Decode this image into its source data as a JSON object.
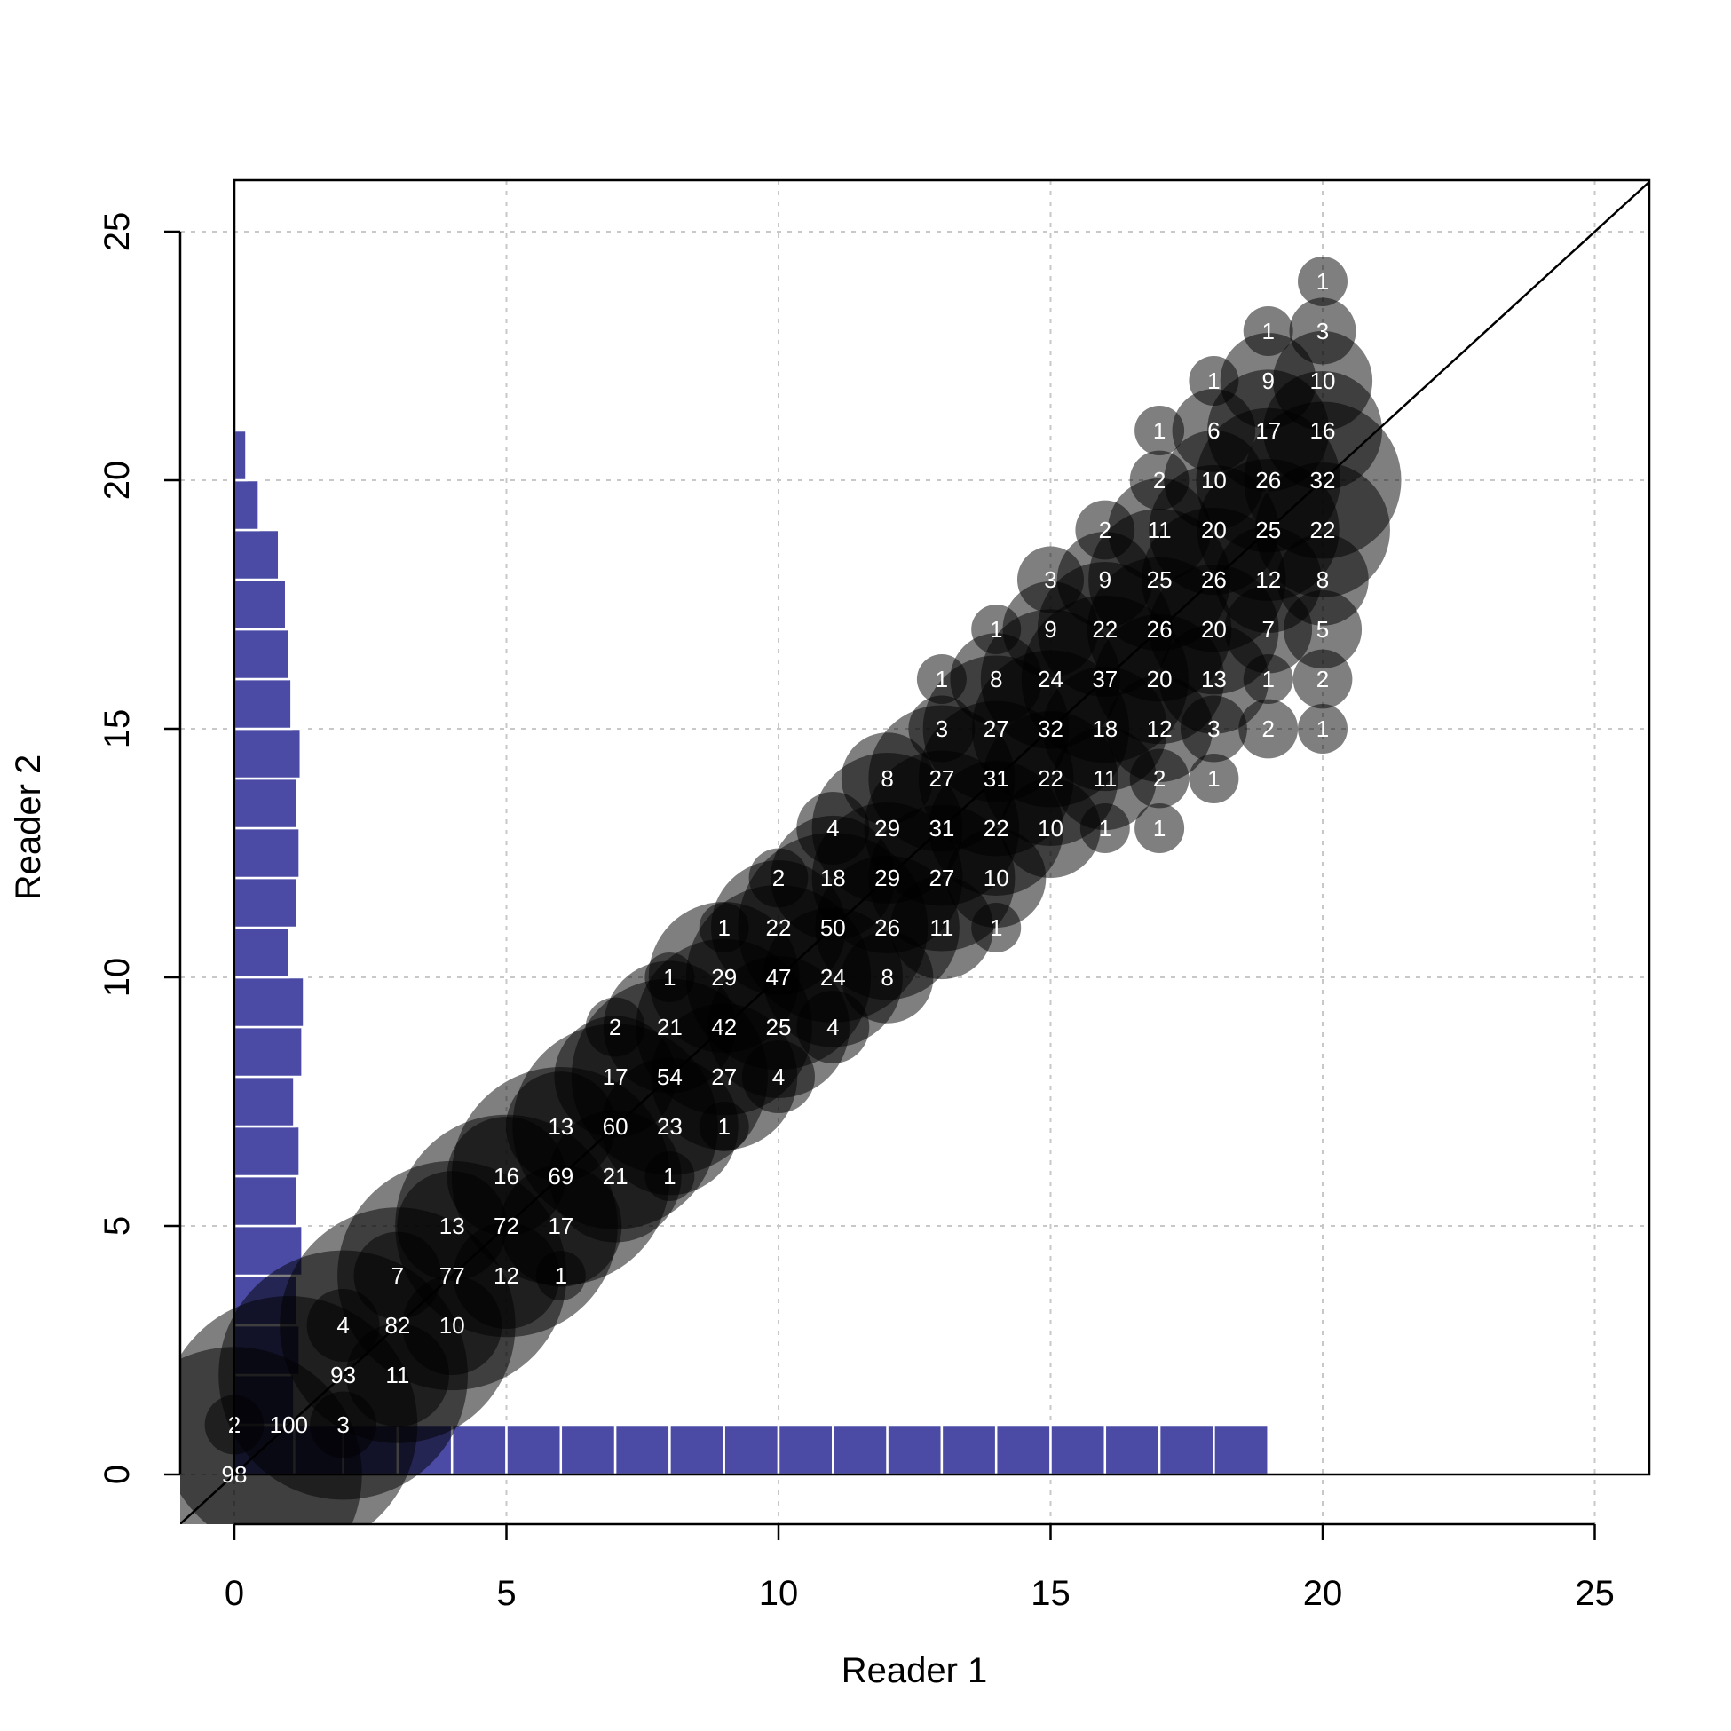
{
  "chart_data": {
    "type": "scatter",
    "subtype": "bubble",
    "title": "",
    "xlabel": "Reader 1",
    "ylabel": "Reader 2",
    "xlim": [
      -1,
      26
    ],
    "ylim": [
      -1,
      26
    ],
    "xticks": [
      0,
      5,
      10,
      15,
      20,
      25
    ],
    "yticks": [
      0,
      5,
      10,
      15,
      20,
      25
    ],
    "grid": true,
    "identity_line": true,
    "bubble_color": "#000000",
    "bubble_opacity": 0.5,
    "bar_color": "#4b4ba6",
    "points": [
      {
        "x": 0,
        "y": 0,
        "n": 98
      },
      {
        "x": 0,
        "y": 1,
        "n": 2
      },
      {
        "x": 1,
        "y": 1,
        "n": 100
      },
      {
        "x": 2,
        "y": 1,
        "n": 3
      },
      {
        "x": 2,
        "y": 2,
        "n": 93
      },
      {
        "x": 3,
        "y": 2,
        "n": 11
      },
      {
        "x": 2,
        "y": 3,
        "n": 4
      },
      {
        "x": 3,
        "y": 3,
        "n": 82
      },
      {
        "x": 4,
        "y": 3,
        "n": 10
      },
      {
        "x": 3,
        "y": 4,
        "n": 7
      },
      {
        "x": 4,
        "y": 4,
        "n": 77
      },
      {
        "x": 5,
        "y": 4,
        "n": 12
      },
      {
        "x": 6,
        "y": 4,
        "n": 1
      },
      {
        "x": 4,
        "y": 5,
        "n": 13
      },
      {
        "x": 5,
        "y": 5,
        "n": 72
      },
      {
        "x": 6,
        "y": 5,
        "n": 17
      },
      {
        "x": 5,
        "y": 6,
        "n": 16
      },
      {
        "x": 6,
        "y": 6,
        "n": 69
      },
      {
        "x": 7,
        "y": 6,
        "n": 21
      },
      {
        "x": 8,
        "y": 6,
        "n": 1
      },
      {
        "x": 6,
        "y": 7,
        "n": 13
      },
      {
        "x": 7,
        "y": 7,
        "n": 60
      },
      {
        "x": 8,
        "y": 7,
        "n": 23
      },
      {
        "x": 9,
        "y": 7,
        "n": 1
      },
      {
        "x": 7,
        "y": 8,
        "n": 17
      },
      {
        "x": 8,
        "y": 8,
        "n": 54
      },
      {
        "x": 9,
        "y": 8,
        "n": 27
      },
      {
        "x": 10,
        "y": 8,
        "n": 4
      },
      {
        "x": 7,
        "y": 9,
        "n": 2
      },
      {
        "x": 8,
        "y": 9,
        "n": 21
      },
      {
        "x": 9,
        "y": 9,
        "n": 42
      },
      {
        "x": 10,
        "y": 9,
        "n": 25
      },
      {
        "x": 11,
        "y": 9,
        "n": 4
      },
      {
        "x": 8,
        "y": 10,
        "n": 1
      },
      {
        "x": 9,
        "y": 10,
        "n": 29
      },
      {
        "x": 10,
        "y": 10,
        "n": 47
      },
      {
        "x": 11,
        "y": 10,
        "n": 24
      },
      {
        "x": 12,
        "y": 10,
        "n": 8
      },
      {
        "x": 9,
        "y": 11,
        "n": 1
      },
      {
        "x": 10,
        "y": 11,
        "n": 22
      },
      {
        "x": 11,
        "y": 11,
        "n": 50
      },
      {
        "x": 12,
        "y": 11,
        "n": 26
      },
      {
        "x": 13,
        "y": 11,
        "n": 11
      },
      {
        "x": 14,
        "y": 11,
        "n": 1
      },
      {
        "x": 10,
        "y": 12,
        "n": 2
      },
      {
        "x": 11,
        "y": 12,
        "n": 18
      },
      {
        "x": 12,
        "y": 12,
        "n": 29
      },
      {
        "x": 13,
        "y": 12,
        "n": 27
      },
      {
        "x": 14,
        "y": 12,
        "n": 10
      },
      {
        "x": 11,
        "y": 13,
        "n": 4
      },
      {
        "x": 12,
        "y": 13,
        "n": 29
      },
      {
        "x": 13,
        "y": 13,
        "n": 31
      },
      {
        "x": 14,
        "y": 13,
        "n": 22
      },
      {
        "x": 15,
        "y": 13,
        "n": 10
      },
      {
        "x": 16,
        "y": 13,
        "n": 1
      },
      {
        "x": 17,
        "y": 13,
        "n": 1
      },
      {
        "x": 12,
        "y": 14,
        "n": 8
      },
      {
        "x": 13,
        "y": 14,
        "n": 27
      },
      {
        "x": 14,
        "y": 14,
        "n": 31
      },
      {
        "x": 15,
        "y": 14,
        "n": 22
      },
      {
        "x": 16,
        "y": 14,
        "n": 11
      },
      {
        "x": 17,
        "y": 14,
        "n": 2
      },
      {
        "x": 18,
        "y": 14,
        "n": 1
      },
      {
        "x": 13,
        "y": 15,
        "n": 3
      },
      {
        "x": 14,
        "y": 15,
        "n": 27
      },
      {
        "x": 15,
        "y": 15,
        "n": 32
      },
      {
        "x": 16,
        "y": 15,
        "n": 18
      },
      {
        "x": 17,
        "y": 15,
        "n": 12
      },
      {
        "x": 18,
        "y": 15,
        "n": 3
      },
      {
        "x": 19,
        "y": 15,
        "n": 2
      },
      {
        "x": 20,
        "y": 15,
        "n": 1
      },
      {
        "x": 13,
        "y": 16,
        "n": 1
      },
      {
        "x": 14,
        "y": 16,
        "n": 8
      },
      {
        "x": 15,
        "y": 16,
        "n": 24
      },
      {
        "x": 16,
        "y": 16,
        "n": 37
      },
      {
        "x": 17,
        "y": 16,
        "n": 20
      },
      {
        "x": 18,
        "y": 16,
        "n": 13
      },
      {
        "x": 19,
        "y": 16,
        "n": 1
      },
      {
        "x": 20,
        "y": 16,
        "n": 2
      },
      {
        "x": 14,
        "y": 17,
        "n": 1
      },
      {
        "x": 15,
        "y": 17,
        "n": 9
      },
      {
        "x": 16,
        "y": 17,
        "n": 22
      },
      {
        "x": 17,
        "y": 17,
        "n": 26
      },
      {
        "x": 18,
        "y": 17,
        "n": 20
      },
      {
        "x": 19,
        "y": 17,
        "n": 7
      },
      {
        "x": 20,
        "y": 17,
        "n": 5
      },
      {
        "x": 15,
        "y": 18,
        "n": 3
      },
      {
        "x": 16,
        "y": 18,
        "n": 9
      },
      {
        "x": 17,
        "y": 18,
        "n": 25
      },
      {
        "x": 18,
        "y": 18,
        "n": 26
      },
      {
        "x": 19,
        "y": 18,
        "n": 12
      },
      {
        "x": 20,
        "y": 18,
        "n": 8
      },
      {
        "x": 16,
        "y": 19,
        "n": 2
      },
      {
        "x": 17,
        "y": 19,
        "n": 11
      },
      {
        "x": 18,
        "y": 19,
        "n": 20
      },
      {
        "x": 19,
        "y": 19,
        "n": 25
      },
      {
        "x": 20,
        "y": 19,
        "n": 22
      },
      {
        "x": 17,
        "y": 20,
        "n": 2
      },
      {
        "x": 18,
        "y": 20,
        "n": 10
      },
      {
        "x": 19,
        "y": 20,
        "n": 26
      },
      {
        "x": 20,
        "y": 20,
        "n": 32
      },
      {
        "x": 17,
        "y": 21,
        "n": 1
      },
      {
        "x": 18,
        "y": 21,
        "n": 6
      },
      {
        "x": 19,
        "y": 21,
        "n": 17
      },
      {
        "x": 20,
        "y": 21,
        "n": 16
      },
      {
        "x": 18,
        "y": 22,
        "n": 1
      },
      {
        "x": 19,
        "y": 22,
        "n": 9
      },
      {
        "x": 20,
        "y": 22,
        "n": 10
      },
      {
        "x": 19,
        "y": 23,
        "n": 1
      },
      {
        "x": 20,
        "y": 23,
        "n": 3
      },
      {
        "x": 20,
        "y": 24,
        "n": 1
      }
    ],
    "bottom_histogram": {
      "description": "marginal distribution of Reader 1 (bars of unit width from x to x+1)",
      "bins": [
        0,
        1,
        2,
        3,
        4,
        5,
        6,
        7,
        8,
        9,
        10,
        11,
        12,
        13,
        14,
        15,
        16,
        17,
        18
      ],
      "heights": [
        1,
        1,
        1,
        1,
        1,
        1,
        1,
        1,
        1,
        1,
        1,
        1,
        1,
        1,
        1,
        1,
        1,
        1,
        1
      ]
    },
    "left_histogram": {
      "description": "marginal distribution of Reader 2 (bars of unit height from y to y+1)",
      "bins": [
        0,
        1,
        2,
        3,
        4,
        5,
        6,
        7,
        8,
        9,
        10,
        11,
        12,
        13,
        14,
        15,
        16,
        17,
        18,
        19,
        20
      ],
      "heights": [
        1.1,
        1.1,
        1.2,
        1.15,
        1.25,
        1.15,
        1.2,
        1.1,
        1.25,
        1.28,
        1.0,
        1.15,
        1.2,
        1.15,
        1.22,
        1.05,
        1.0,
        0.95,
        0.82,
        0.45,
        0.22
      ]
    }
  }
}
